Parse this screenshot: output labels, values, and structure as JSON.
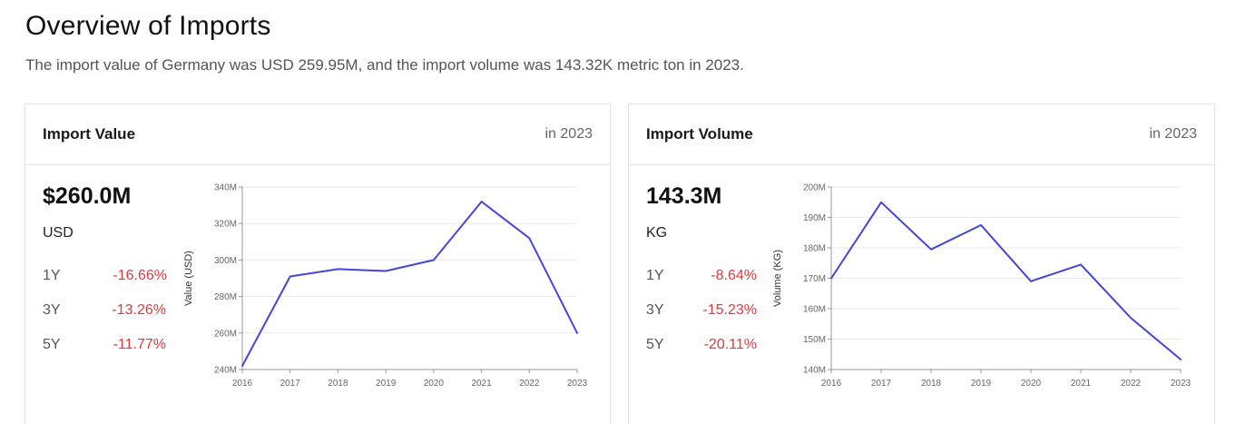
{
  "header": {
    "title": "Overview of Imports",
    "subtitle": "The import value of Germany was USD 259.95M, and the import volume was 143.32K metric ton in 2023."
  },
  "cards": [
    {
      "title": "Import Value",
      "period": "in 2023",
      "value": "$260.0M",
      "unit": "USD",
      "changes": [
        {
          "period": "1Y",
          "value": "-16.66%"
        },
        {
          "period": "3Y",
          "value": "-13.26%"
        },
        {
          "period": "5Y",
          "value": "-11.77%"
        }
      ]
    },
    {
      "title": "Import Volume",
      "period": "in 2023",
      "value": "143.3M",
      "unit": "KG",
      "changes": [
        {
          "period": "1Y",
          "value": "-8.64%"
        },
        {
          "period": "3Y",
          "value": "-15.23%"
        },
        {
          "period": "5Y",
          "value": "-20.11%"
        }
      ]
    }
  ],
  "colors": {
    "line": "#4545d8",
    "negative": "#e0383b",
    "grid": "#e9e9e9"
  },
  "chart_data": [
    {
      "type": "line",
      "x": [
        "2016",
        "2017",
        "2018",
        "2019",
        "2020",
        "2021",
        "2022",
        "2023"
      ],
      "values": [
        242,
        291,
        295,
        294,
        300,
        332,
        312,
        260
      ],
      "ylabel": "Value (USD)",
      "ylim": [
        240,
        340
      ],
      "yticks": [
        240,
        260,
        280,
        300,
        320,
        340
      ],
      "yticklabels": [
        "240M",
        "260M",
        "280M",
        "300M",
        "320M",
        "340M"
      ],
      "grid": true
    },
    {
      "type": "line",
      "x": [
        "2016",
        "2017",
        "2018",
        "2019",
        "2020",
        "2021",
        "2022",
        "2023"
      ],
      "values": [
        170,
        195,
        179.5,
        187.5,
        169,
        174.5,
        157,
        143.3
      ],
      "ylabel": "Volume (KG)",
      "ylim": [
        140,
        200
      ],
      "yticks": [
        140,
        150,
        160,
        170,
        180,
        190,
        200
      ],
      "yticklabels": [
        "140M",
        "150M",
        "160M",
        "170M",
        "180M",
        "190M",
        "200M"
      ],
      "grid": true
    }
  ]
}
